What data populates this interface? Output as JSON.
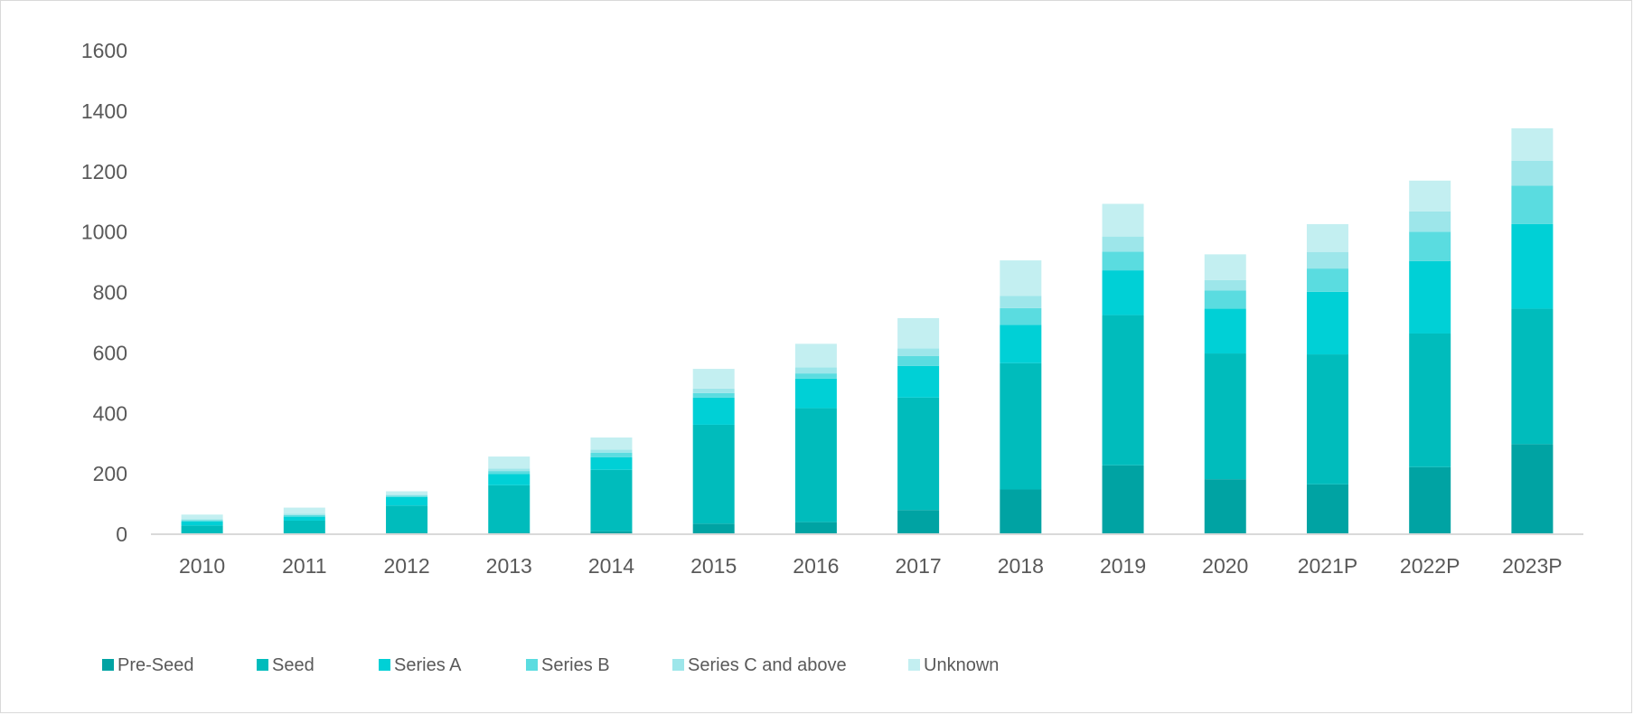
{
  "chart_data": {
    "type": "bar",
    "stacked": true,
    "title": "",
    "xlabel": "",
    "ylabel": "",
    "ylim": [
      0,
      1600
    ],
    "yticks": [
      "0",
      "200",
      "400",
      "600",
      "800",
      "1000",
      "1200",
      "1400",
      "1600"
    ],
    "grid": false,
    "legend_position": "bottom",
    "categories": [
      "2010",
      "2011",
      "2012",
      "2013",
      "2014",
      "2015",
      "2016",
      "2017",
      "2018",
      "2019",
      "2020",
      "2021P",
      "2022P",
      "2023P"
    ],
    "series": [
      {
        "name": "Pre-Seed",
        "color": "#00A3A3",
        "values": [
          2,
          2,
          5,
          5,
          10,
          35,
          40,
          80,
          148,
          228,
          182,
          165,
          222,
          298
        ]
      },
      {
        "name": "Seed",
        "color": "#00BCBC",
        "values": [
          27,
          43,
          90,
          157,
          203,
          327,
          377,
          372,
          418,
          497,
          416,
          430,
          442,
          448
        ]
      },
      {
        "name": "Series A",
        "color": "#00D0D6",
        "values": [
          13,
          13,
          28,
          37,
          42,
          90,
          98,
          105,
          127,
          148,
          148,
          207,
          240,
          280
        ]
      },
      {
        "name": "Series B",
        "color": "#5ADCE0",
        "values": [
          5,
          5,
          4,
          10,
          15,
          15,
          17,
          33,
          55,
          62,
          60,
          77,
          97,
          127
        ]
      },
      {
        "name": "Series C and above",
        "color": "#9DE6EA",
        "values": [
          3,
          5,
          3,
          8,
          10,
          15,
          20,
          25,
          40,
          50,
          35,
          55,
          67,
          83
        ]
      },
      {
        "name": "Unknown",
        "color": "#C3EFF1",
        "values": [
          15,
          20,
          12,
          40,
          40,
          65,
          78,
          100,
          118,
          108,
          85,
          92,
          102,
          107
        ]
      }
    ]
  }
}
